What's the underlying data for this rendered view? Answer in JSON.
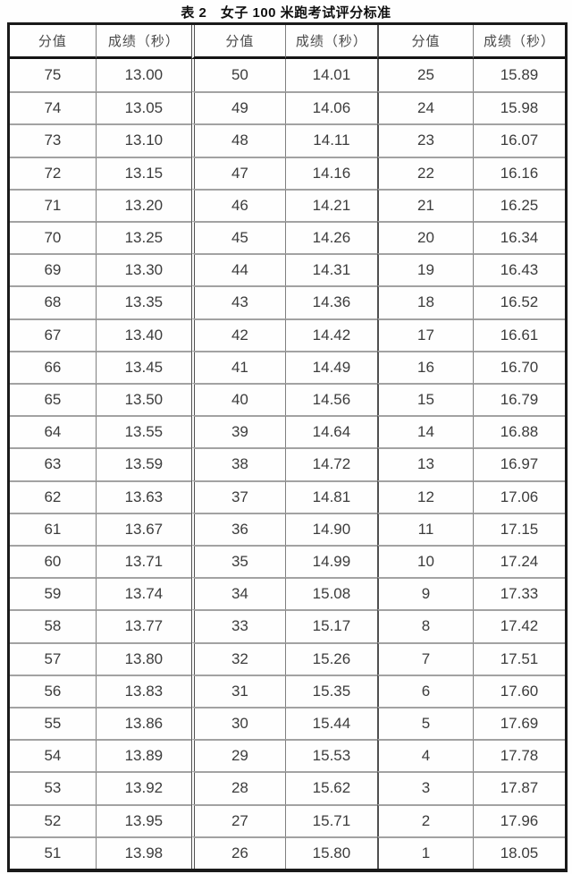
{
  "title": "表 2　女子 100 米跑考试评分标准",
  "table": {
    "header": [
      "分值",
      "成绩（秒）",
      "分值",
      "成绩（秒）",
      "分值",
      "成绩（秒）"
    ],
    "rows": [
      [
        "75",
        "13.00",
        "50",
        "14.01",
        "25",
        "15.89"
      ],
      [
        "74",
        "13.05",
        "49",
        "14.06",
        "24",
        "15.98"
      ],
      [
        "73",
        "13.10",
        "48",
        "14.11",
        "23",
        "16.07"
      ],
      [
        "72",
        "13.15",
        "47",
        "14.16",
        "22",
        "16.16"
      ],
      [
        "71",
        "13.20",
        "46",
        "14.21",
        "21",
        "16.25"
      ],
      [
        "70",
        "13.25",
        "45",
        "14.26",
        "20",
        "16.34"
      ],
      [
        "69",
        "13.30",
        "44",
        "14.31",
        "19",
        "16.43"
      ],
      [
        "68",
        "13.35",
        "43",
        "14.36",
        "18",
        "16.52"
      ],
      [
        "67",
        "13.40",
        "42",
        "14.42",
        "17",
        "16.61"
      ],
      [
        "66",
        "13.45",
        "41",
        "14.49",
        "16",
        "16.70"
      ],
      [
        "65",
        "13.50",
        "40",
        "14.56",
        "15",
        "16.79"
      ],
      [
        "64",
        "13.55",
        "39",
        "14.64",
        "14",
        "16.88"
      ],
      [
        "63",
        "13.59",
        "38",
        "14.72",
        "13",
        "16.97"
      ],
      [
        "62",
        "13.63",
        "37",
        "14.81",
        "12",
        "17.06"
      ],
      [
        "61",
        "13.67",
        "36",
        "14.90",
        "11",
        "17.15"
      ],
      [
        "60",
        "13.71",
        "35",
        "14.99",
        "10",
        "17.24"
      ],
      [
        "59",
        "13.74",
        "34",
        "15.08",
        "9",
        "17.33"
      ],
      [
        "58",
        "13.77",
        "33",
        "15.17",
        "8",
        "17.42"
      ],
      [
        "57",
        "13.80",
        "32",
        "15.26",
        "7",
        "17.51"
      ],
      [
        "56",
        "13.83",
        "31",
        "15.35",
        "6",
        "17.60"
      ],
      [
        "55",
        "13.86",
        "30",
        "15.44",
        "5",
        "17.69"
      ],
      [
        "54",
        "13.89",
        "29",
        "15.53",
        "4",
        "17.78"
      ],
      [
        "53",
        "13.92",
        "28",
        "15.62",
        "3",
        "17.87"
      ],
      [
        "52",
        "13.95",
        "27",
        "15.71",
        "2",
        "17.96"
      ],
      [
        "51",
        "13.98",
        "26",
        "15.80",
        "1",
        "18.05"
      ]
    ]
  },
  "colors": {
    "outer_border": "#1a1a1a",
    "header_rule": "#141414",
    "row_line": "#a2a2a2",
    "group_rule": "#4f4f4f",
    "text": "#3c3c3c"
  }
}
